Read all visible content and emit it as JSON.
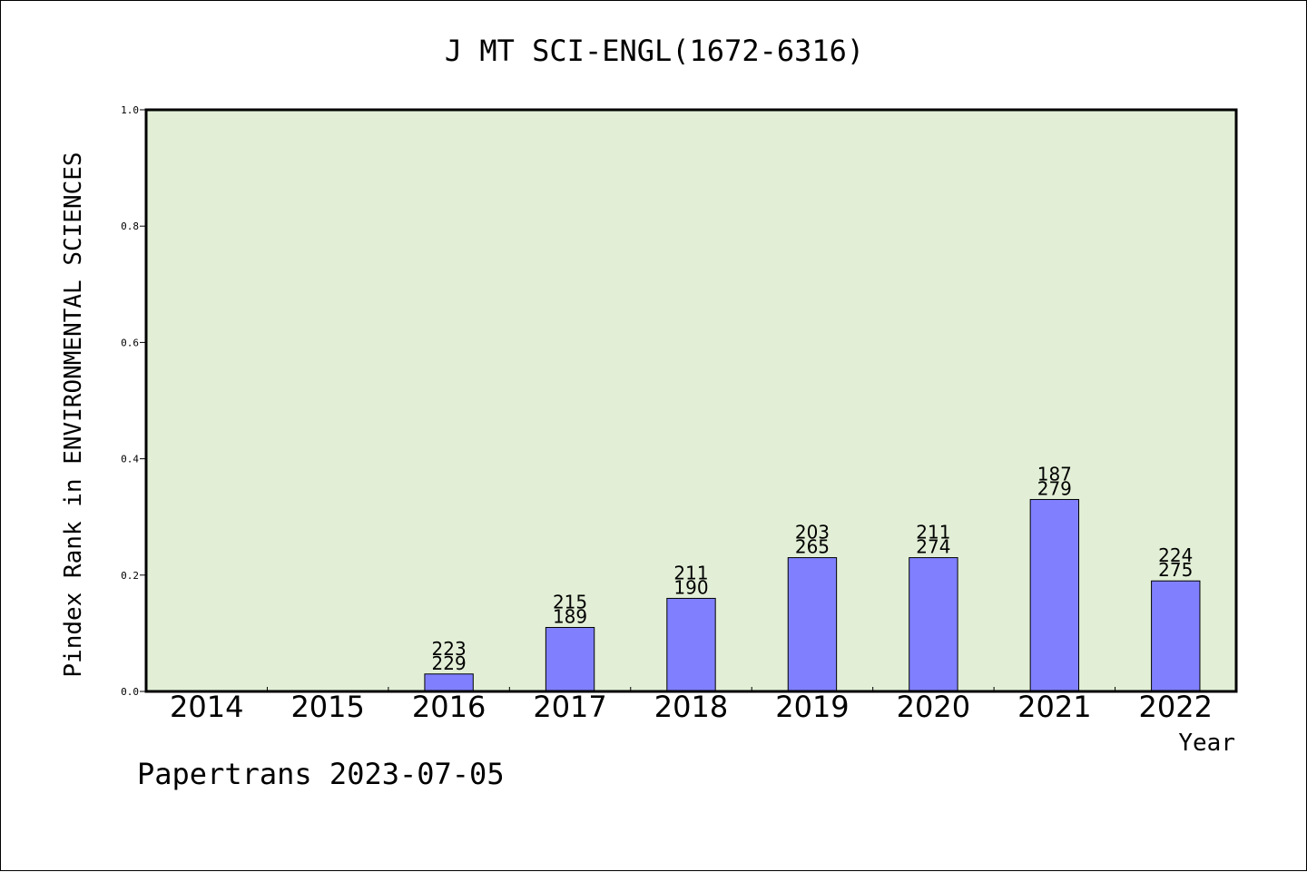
{
  "chart_data": {
    "type": "bar",
    "title": "J MT SCI-ENGL(1672-6316)",
    "xlabel": "Year",
    "ylabel": "Pindex Rank in ENVIRONMENTAL SCIENCES",
    "categories": [
      "2014",
      "2015",
      "2016",
      "2017",
      "2018",
      "2019",
      "2020",
      "2021",
      "2022"
    ],
    "values": [
      0,
      0,
      0.03,
      0.11,
      0.16,
      0.23,
      0.23,
      0.33,
      0.19
    ],
    "labels_top": [
      "",
      "",
      "223",
      "215",
      "211",
      "203",
      "211",
      "187",
      "224"
    ],
    "labels_bottom": [
      "",
      "",
      "229",
      "189",
      "190",
      "265",
      "274",
      "279",
      "275"
    ],
    "ylim": [
      0,
      1.0
    ],
    "yticks": [
      "0.0",
      "0.2",
      "0.4",
      "0.6",
      "0.8",
      "1.0"
    ],
    "grid": false,
    "colors": {
      "plot_background": "#e2efd6",
      "bar_fill": "#8080ff",
      "bar_stroke": "#000000"
    }
  },
  "footer": "Papertrans 2023-07-05"
}
